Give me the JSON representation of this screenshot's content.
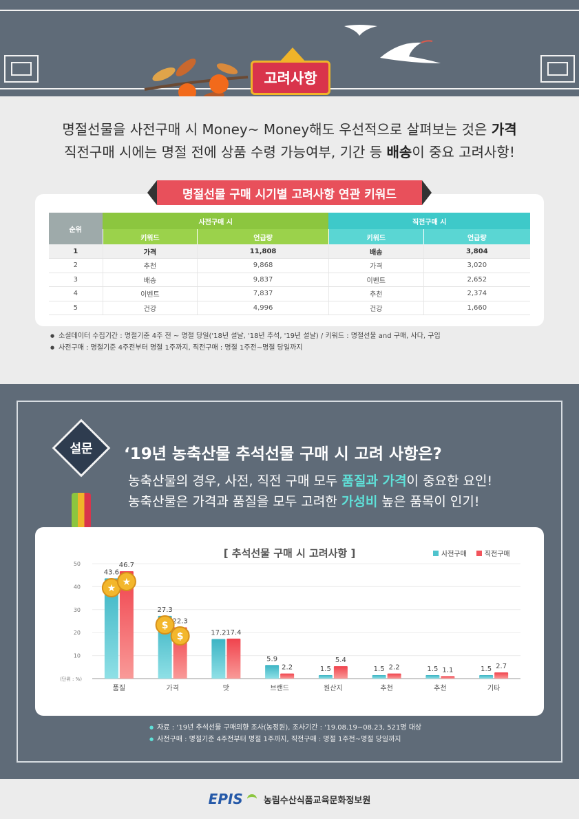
{
  "banner": {
    "badge": "고려사항"
  },
  "intro": {
    "line1_pre": "명절선물을 사전구매 시 Money~ Money해도 우선적으로 살펴보는 것은 ",
    "line1_bold": "가격",
    "line2_pre": "직전구매 시에는 명절 전에 상품 수령 가능여부, 기간 등 ",
    "line2_bold": "배송",
    "line2_post": "이 중요 고려사항!"
  },
  "table": {
    "ribbon": "명절선물 구매 시기별 고려사항 연관 키워드",
    "rank_header": "순위",
    "pre_header": "사전구매 시",
    "imm_header": "직전구매 시",
    "keyword_col": "키워드",
    "count_col": "언급량",
    "rows": [
      {
        "rank": "1",
        "pre_kw": "가격",
        "pre_cnt": "11,808",
        "imm_kw": "배송",
        "imm_cnt": "3,804"
      },
      {
        "rank": "2",
        "pre_kw": "추천",
        "pre_cnt": "9,868",
        "imm_kw": "가격",
        "imm_cnt": "3,020"
      },
      {
        "rank": "3",
        "pre_kw": "배송",
        "pre_cnt": "9,837",
        "imm_kw": "이벤트",
        "imm_cnt": "2,652"
      },
      {
        "rank": "4",
        "pre_kw": "이벤트",
        "pre_cnt": "7,837",
        "imm_kw": "추천",
        "imm_cnt": "2,374"
      },
      {
        "rank": "5",
        "pre_kw": "건강",
        "pre_cnt": "4,996",
        "imm_kw": "건강",
        "imm_cnt": "1,660"
      }
    ],
    "notes": [
      "소셜데이터 수집기간 : 명절기준 4주 전 ~ 명절 당일('18년 설날, '18년 추석, '19년 설날) / 키워드 : 명절선물 and 구매, 사다, 구입",
      "사전구매 : 명절기준 4주전부터 명절 1주까지, 직전구매 : 명절 1주전~명절 당일까지"
    ]
  },
  "survey": {
    "badge": "설문",
    "title": "‘19년 농축산물 추석선물 구매 시 고려 사항은?",
    "sub1_pre": "농축산물의 경우, 사전, 직전 구매 모두 ",
    "sub1_hl": "품질과 가격",
    "sub1_post": "이 중요한 요인!",
    "sub2_pre": "농축산물은 가격과 품질을 모두 고려한 ",
    "sub2_hl": "가성비",
    "sub2_post": " 높은 품목이 인기!",
    "notes": [
      "자료 : ‘19년 추석선물 구매의향 조사(농정원), 조사기간 : ‘19.08.19~08.23, 521명 대상",
      "사전구매 : 명절기준 4주전부터 명절 1주까지, 직전구매 : 명절 1주전~명절 당일까지"
    ]
  },
  "colors": {
    "pre": "#4fc3cd",
    "imm": "#f2545b",
    "accent": "#5fe0d8"
  },
  "chart_data": {
    "type": "bar",
    "title": "[ 추석선물 구매 시 고려사항 ]",
    "ylabel": "(단위 : %)",
    "ylim": [
      0,
      50
    ],
    "yticks": [
      "10",
      "20",
      "30",
      "40",
      "50"
    ],
    "categories": [
      "품질",
      "가격",
      "맛",
      "브랜드",
      "원산지",
      "추천",
      "추천",
      "기타"
    ],
    "series": [
      {
        "name": "사전구매",
        "values": [
          43.6,
          27.3,
          17.2,
          5.9,
          1.5,
          1.5,
          1.5,
          1.5
        ]
      },
      {
        "name": "직전구매",
        "values": [
          46.7,
          22.3,
          17.4,
          2.2,
          5.4,
          2.2,
          1.1,
          2.7
        ]
      }
    ],
    "legend": "top-right",
    "grid": true
  },
  "footer": {
    "logo": "EPIS",
    "org": "농림수산식품교육문화정보원"
  }
}
